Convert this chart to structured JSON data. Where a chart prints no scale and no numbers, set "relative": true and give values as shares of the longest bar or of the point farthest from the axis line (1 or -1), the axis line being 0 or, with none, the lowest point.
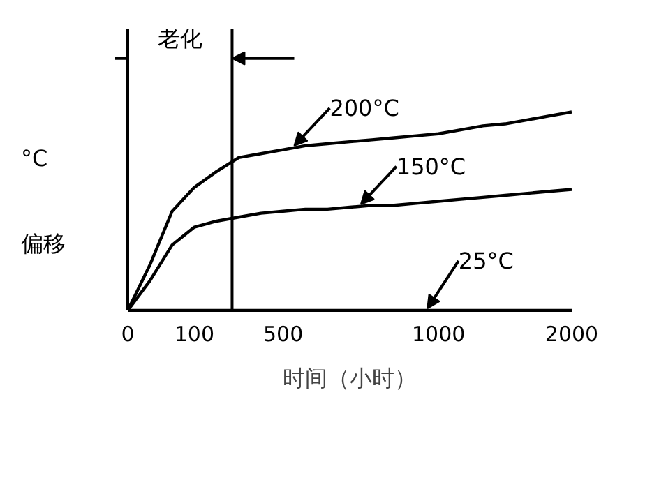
{
  "chart_data": {
    "type": "line",
    "relative": true,
    "xlabel": "时间（小时）",
    "ylabel": "°C\n偏移",
    "categories": [
      "0",
      null,
      null,
      "100",
      null,
      null,
      null,
      "500",
      null,
      null,
      null,
      null,
      null,
      null,
      "1000",
      null,
      null,
      null,
      null,
      null,
      "2000"
    ],
    "series": [
      {
        "name": "200°C",
        "color": "#000000",
        "values": [
          0,
          0.23,
          0.5,
          0.62,
          0.7,
          0.77,
          0.79,
          0.81,
          0.83,
          0.84,
          0.85,
          0.86,
          0.87,
          0.88,
          0.89,
          0.91,
          0.93,
          0.94,
          0.96,
          0.98,
          1.0
        ]
      },
      {
        "name": "150°C",
        "color": "#000000",
        "values": [
          0,
          0.15,
          0.33,
          0.42,
          0.45,
          0.47,
          0.49,
          0.5,
          0.51,
          0.51,
          0.52,
          0.53,
          0.53,
          0.54,
          0.55,
          0.56,
          0.57,
          0.58,
          0.59,
          0.6,
          0.61
        ]
      },
      {
        "name": "25°C",
        "color": "#000000",
        "values": [
          0,
          0,
          0,
          0,
          0,
          0,
          0,
          0,
          0,
          0,
          0,
          0,
          0,
          0,
          0,
          0,
          0,
          0,
          0,
          0,
          0
        ]
      }
    ],
    "ref_lines": [
      {
        "axis": "x",
        "label": "老化",
        "color": "#000000"
      }
    ],
    "tick_labels": "x"
  }
}
